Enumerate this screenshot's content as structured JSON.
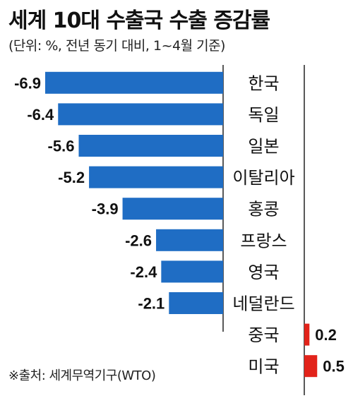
{
  "title": "세계 10대 수출국 수출 증감률",
  "subtitle": "(단위: %, 전년 동기 대비, 1~4월 기준)",
  "source": "※출처: 세계무역기구(WTO)",
  "colors": {
    "negative": "#1f6dc4",
    "positive": "#e2231a",
    "axis": "#222222"
  },
  "chart_data": {
    "type": "bar",
    "orientation": "horizontal",
    "title": "세계 10대 수출국 수출 증감률",
    "subtitle": "(단위: %, 전년 동기 대비, 1~4월 기준)",
    "categories": [
      "한국",
      "독일",
      "일본",
      "이탈리아",
      "홍콩",
      "프랑스",
      "영국",
      "네덜란드",
      "중국",
      "미국"
    ],
    "values": [
      -6.9,
      -6.4,
      -5.6,
      -5.2,
      -3.9,
      -2.6,
      -2.4,
      -2.1,
      0.2,
      0.5
    ],
    "value_labels": [
      "-6.9",
      "-6.4",
      "-5.6",
      "-5.2",
      "-3.9",
      "-2.6",
      "-2.4",
      "-2.1",
      "0.2",
      "0.5"
    ],
    "xlim": [
      -6.9,
      0.5
    ],
    "grid": false,
    "legend": "none"
  }
}
